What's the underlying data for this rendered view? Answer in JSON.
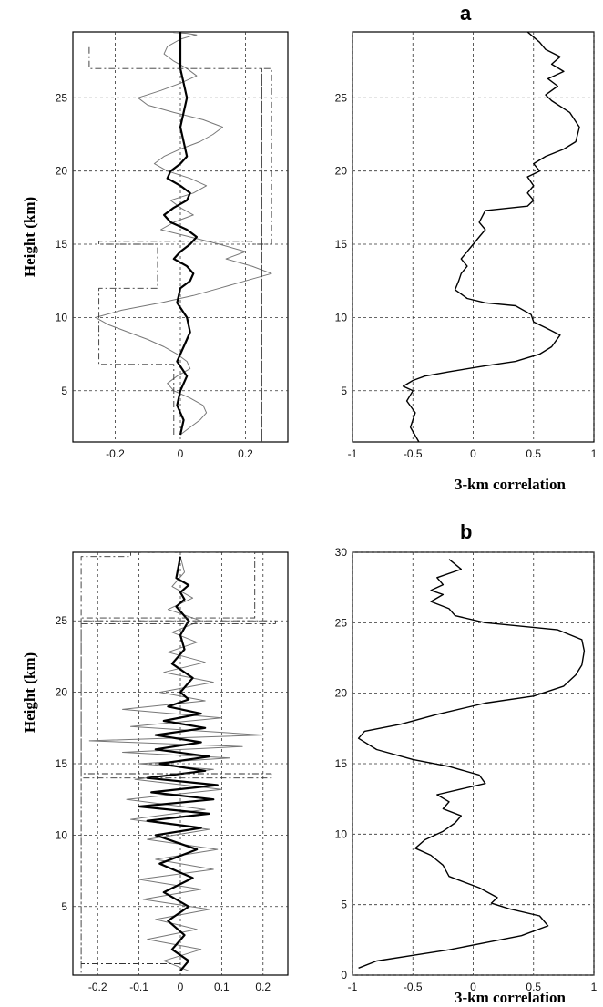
{
  "panel_labels": [
    "a",
    "b"
  ],
  "chart_data": [
    {
      "panel": "a-left",
      "type": "line",
      "ylabel": "Height (km)",
      "xlabel": "",
      "xlim": [
        -0.33,
        0.33
      ],
      "ylim": [
        1.5,
        29.5
      ],
      "xticks": [
        -0.2,
        0,
        0.2
      ],
      "xtick_labels": [
        "-0.2",
        "0",
        "0.2"
      ],
      "yticks": [
        5,
        10,
        15,
        20,
        25
      ],
      "ytick_labels": [
        "5",
        "10",
        "15",
        "20",
        "25"
      ],
      "grid": true,
      "series": [
        {
          "style": "thin-oscillation",
          "color": "#777777",
          "x": [
            0.0,
            0.03,
            0.06,
            0.08,
            0.07,
            0.03,
            -0.02,
            -0.04,
            -0.01,
            0.03,
            0.02,
            -0.01,
            -0.05,
            -0.1,
            -0.16,
            -0.22,
            -0.26,
            -0.18,
            -0.06,
            0.04,
            0.12,
            0.2,
            0.28,
            0.22,
            0.14,
            0.2,
            0.12,
            0.03,
            -0.06,
            -0.02,
            0.04,
            0.0,
            -0.03,
            0.04,
            0.08,
            0.03,
            -0.04,
            -0.08,
            -0.05,
            0.0,
            0.06,
            0.1,
            0.13,
            0.07,
            -0.02,
            -0.1,
            -0.13,
            -0.06,
            0.0,
            0.05,
            0.02,
            -0.02,
            -0.05,
            -0.04,
            0.0,
            0.03,
            0.05,
            0.02,
            -0.02,
            0.0
          ],
          "y": [
            2.0,
            2.5,
            3.0,
            3.5,
            4.0,
            4.5,
            5.0,
            5.5,
            6.0,
            6.5,
            7.0,
            7.5,
            8.0,
            8.5,
            9.0,
            9.5,
            10.0,
            10.5,
            11.0,
            11.5,
            12.0,
            12.5,
            13.0,
            13.5,
            14.0,
            14.5,
            15.0,
            15.5,
            16.0,
            16.5,
            17.0,
            17.5,
            18.0,
            18.5,
            19.0,
            19.5,
            20.0,
            20.5,
            21.0,
            21.5,
            22.0,
            22.5,
            23.0,
            23.5,
            24.0,
            24.5,
            25.0,
            25.5,
            26.0,
            26.5,
            27.0,
            27.5,
            28.0,
            28.5,
            29.0,
            29.2,
            29.3,
            29.4,
            29.45,
            29.5
          ]
        },
        {
          "style": "thick-line",
          "color": "#000000",
          "x": [
            0.0,
            0.01,
            -0.01,
            0.0,
            0.02,
            -0.01,
            0.01,
            0.03,
            0.02,
            -0.01,
            0.0,
            0.03,
            0.04,
            0.02,
            -0.02,
            0.0,
            0.03,
            0.05,
            0.02,
            -0.03,
            -0.05,
            -0.02,
            0.02,
            0.03,
            0.0,
            -0.04,
            -0.03,
            0.0,
            0.02,
            0.01,
            0.0,
            0.01,
            0.02,
            0.01,
            0.0,
            0.0,
            0.0,
            0.0
          ],
          "y": [
            2.0,
            3.0,
            4.0,
            5.0,
            6.0,
            7.0,
            8.0,
            9.0,
            10.0,
            11.0,
            12.0,
            12.5,
            13.0,
            13.5,
            14.0,
            14.5,
            15.0,
            15.5,
            16.0,
            16.5,
            17.0,
            17.5,
            18.0,
            18.5,
            19.0,
            19.5,
            20.0,
            20.5,
            21.0,
            22.0,
            23.0,
            24.0,
            25.0,
            26.0,
            27.0,
            28.0,
            29.0,
            29.5
          ]
        },
        {
          "style": "dash-dot-envelope",
          "color": "#333333",
          "x": [
            -0.02,
            -0.02,
            -0.25,
            -0.25,
            -0.07,
            -0.07,
            -0.25,
            -0.25,
            0.22,
            0.22,
            0.28,
            0.28,
            0.25,
            0.25,
            0.25,
            -0.28,
            -0.28
          ],
          "y": [
            2.0,
            6.8,
            6.8,
            12.0,
            12.0,
            15.0,
            15.0,
            15.2,
            15.2,
            15.0,
            15.0,
            27.0,
            27.0,
            1.5,
            27.0,
            27.0,
            28.5
          ]
        }
      ]
    },
    {
      "panel": "a-right",
      "type": "line",
      "xlabel": "3-km correlation",
      "ylabel": "",
      "xlim": [
        -1,
        1
      ],
      "ylim": [
        1.5,
        29.5
      ],
      "xticks": [
        -1,
        -0.5,
        0,
        0.5,
        1
      ],
      "xtick_labels": [
        "-1",
        "-0.5",
        "0",
        "0.5",
        "1"
      ],
      "yticks": [
        5,
        10,
        15,
        20,
        25
      ],
      "ytick_labels": [
        "5",
        "10",
        "15",
        "20",
        "25"
      ],
      "grid": true,
      "series": [
        {
          "style": "line",
          "color": "#000000",
          "x": [
            -0.45,
            -0.52,
            -0.48,
            -0.55,
            -0.5,
            -0.58,
            -0.5,
            -0.4,
            -0.2,
            0.1,
            0.35,
            0.55,
            0.65,
            0.72,
            0.6,
            0.5,
            0.48,
            0.35,
            0.1,
            -0.05,
            -0.1,
            -0.15,
            -0.12,
            -0.1,
            -0.05,
            -0.1,
            -0.05,
            0.0,
            0.05,
            0.1,
            0.05,
            0.1,
            0.45,
            0.5,
            0.45,
            0.5,
            0.45,
            0.55,
            0.5,
            0.6,
            0.75,
            0.85,
            0.88,
            0.8,
            0.65,
            0.6,
            0.7,
            0.62,
            0.75,
            0.65,
            0.72,
            0.6,
            0.55,
            0.45
          ],
          "y": [
            1.5,
            2.5,
            3.5,
            4.3,
            5.0,
            5.3,
            5.7,
            6.0,
            6.3,
            6.7,
            7.0,
            7.5,
            8.0,
            8.8,
            9.3,
            9.7,
            10.2,
            10.8,
            11.0,
            11.3,
            11.6,
            11.9,
            12.5,
            13.0,
            13.5,
            14.0,
            14.5,
            15.0,
            15.5,
            16.0,
            16.5,
            17.3,
            17.6,
            18.0,
            18.5,
            19.0,
            19.6,
            20.0,
            20.5,
            21.0,
            21.5,
            22.0,
            23.0,
            24.0,
            24.8,
            25.2,
            25.8,
            26.3,
            26.8,
            27.3,
            27.8,
            28.3,
            28.8,
            29.5
          ]
        }
      ]
    },
    {
      "panel": "b-left",
      "type": "line",
      "ylabel": "Height (km)",
      "xlabel": "",
      "xlim": [
        -0.26,
        0.26
      ],
      "ylim": [
        0.2,
        29.8
      ],
      "xticks": [
        -0.2,
        -0.1,
        0,
        0.1,
        0.2
      ],
      "xtick_labels": [
        "-0.2",
        "-0.1",
        "0",
        "0.1",
        "0.2"
      ],
      "yticks": [
        5,
        10,
        15,
        20,
        25
      ],
      "ytick_labels": [
        "5",
        "10",
        "15",
        "20",
        "25"
      ],
      "grid": true,
      "series": [
        {
          "style": "thin-oscillation",
          "color": "#777777",
          "x": [
            0.02,
            -0.04,
            0.05,
            -0.08,
            0.04,
            -0.06,
            0.07,
            -0.09,
            0.05,
            -0.1,
            0.08,
            -0.06,
            0.09,
            -0.08,
            0.07,
            -0.12,
            0.06,
            -0.13,
            0.1,
            -0.11,
            0.08,
            -0.1,
            0.12,
            -0.14,
            0.15,
            -0.22,
            0.2,
            -0.12,
            0.1,
            -0.14,
            0.06,
            -0.05,
            0.08,
            -0.04,
            0.06,
            -0.03,
            0.04,
            -0.02,
            0.05,
            -0.03,
            0.03,
            -0.02,
            0.01,
            0.0
          ],
          "y": [
            0.5,
            1.2,
            2.0,
            2.7,
            3.4,
            4.1,
            4.8,
            5.5,
            6.2,
            6.9,
            7.6,
            8.3,
            9.0,
            9.7,
            10.4,
            11.1,
            11.8,
            12.5,
            13.2,
            13.9,
            14.6,
            15.0,
            15.4,
            15.8,
            16.2,
            16.6,
            17.0,
            17.6,
            18.2,
            18.8,
            19.4,
            20.0,
            20.7,
            21.4,
            22.1,
            22.8,
            23.5,
            24.2,
            25.0,
            25.8,
            26.6,
            27.4,
            28.4,
            29.5
          ]
        },
        {
          "style": "thick-line",
          "color": "#000000",
          "x": [
            0.0,
            0.02,
            -0.02,
            0.01,
            -0.03,
            0.02,
            -0.04,
            0.03,
            -0.05,
            0.04,
            -0.06,
            0.05,
            -0.08,
            0.07,
            -0.1,
            0.08,
            -0.07,
            0.09,
            -0.08,
            0.06,
            -0.05,
            0.07,
            -0.06,
            0.05,
            -0.06,
            0.06,
            -0.04,
            0.05,
            -0.03,
            0.02,
            0.0,
            0.03,
            -0.02,
            0.01,
            0.0,
            0.02,
            -0.01,
            0.01,
            0.0,
            0.02,
            -0.01,
            0.0
          ],
          "y": [
            0.5,
            1.2,
            2.0,
            3.0,
            4.0,
            5.0,
            6.0,
            7.0,
            8.0,
            9.0,
            10.0,
            10.5,
            11.0,
            11.5,
            12.0,
            12.5,
            13.0,
            13.5,
            14.0,
            14.5,
            15.0,
            15.5,
            16.0,
            16.5,
            17.0,
            17.5,
            18.0,
            18.5,
            19.0,
            19.5,
            20.0,
            21.0,
            22.0,
            23.0,
            24.0,
            25.0,
            26.0,
            26.5,
            27.0,
            27.5,
            28.0,
            29.5
          ]
        },
        {
          "style": "dash-dot-envelope",
          "color": "#333333",
          "x": [
            0.0,
            -0.24,
            -0.24,
            0.22,
            0.22,
            -0.24,
            -0.24,
            0.23,
            0.23,
            -0.24,
            -0.24,
            -0.12,
            -0.12,
            0.18,
            0.18,
            -0.24,
            -0.24
          ],
          "y": [
            1.0,
            1.0,
            14.0,
            14.0,
            14.3,
            14.3,
            24.8,
            24.8,
            25.0,
            25.0,
            29.5,
            29.5,
            29.8,
            29.8,
            25.2,
            25.2,
            0.3
          ]
        }
      ]
    },
    {
      "panel": "b-right",
      "type": "line",
      "xlabel": "3-km correlation",
      "ylabel": "",
      "xlim": [
        -1,
        1
      ],
      "ylim": [
        0,
        30
      ],
      "xticks": [
        -1,
        -0.5,
        0,
        0.5,
        1
      ],
      "xtick_labels": [
        "-1",
        "-0.5",
        "0",
        "0.5",
        "1"
      ],
      "yticks": [
        0,
        5,
        10,
        15,
        20,
        25,
        30
      ],
      "ytick_labels": [
        "0",
        "5",
        "10",
        "15",
        "20",
        "25",
        "30"
      ],
      "grid": true,
      "series": [
        {
          "style": "line",
          "color": "#000000",
          "x": [
            -0.95,
            -0.8,
            -0.5,
            -0.2,
            0.1,
            0.4,
            0.62,
            0.55,
            0.3,
            0.15,
            0.2,
            0.05,
            -0.2,
            -0.25,
            -0.35,
            -0.48,
            -0.4,
            -0.25,
            -0.15,
            -0.1,
            -0.25,
            -0.2,
            -0.3,
            -0.1,
            0.1,
            0.05,
            -0.2,
            -0.5,
            -0.8,
            -0.95,
            -0.9,
            -0.6,
            -0.3,
            0.1,
            0.5,
            0.75,
            0.85,
            0.9,
            0.92,
            0.9,
            0.7,
            0.1,
            -0.15,
            -0.2,
            -0.35,
            -0.25,
            -0.35,
            -0.25,
            -0.3,
            -0.1,
            -0.2
          ],
          "y": [
            0.5,
            1.0,
            1.4,
            1.8,
            2.3,
            2.8,
            3.5,
            4.2,
            4.7,
            5.1,
            5.5,
            6.2,
            7.0,
            7.8,
            8.5,
            9.0,
            9.6,
            10.2,
            10.8,
            11.3,
            11.8,
            12.3,
            12.8,
            13.2,
            13.6,
            14.2,
            14.8,
            15.3,
            16.0,
            16.8,
            17.3,
            17.8,
            18.5,
            19.3,
            19.8,
            20.5,
            21.3,
            22.0,
            23.0,
            23.8,
            24.5,
            25.0,
            25.5,
            26.0,
            26.5,
            27.0,
            27.3,
            27.7,
            28.2,
            28.8,
            29.5
          ]
        }
      ]
    }
  ]
}
